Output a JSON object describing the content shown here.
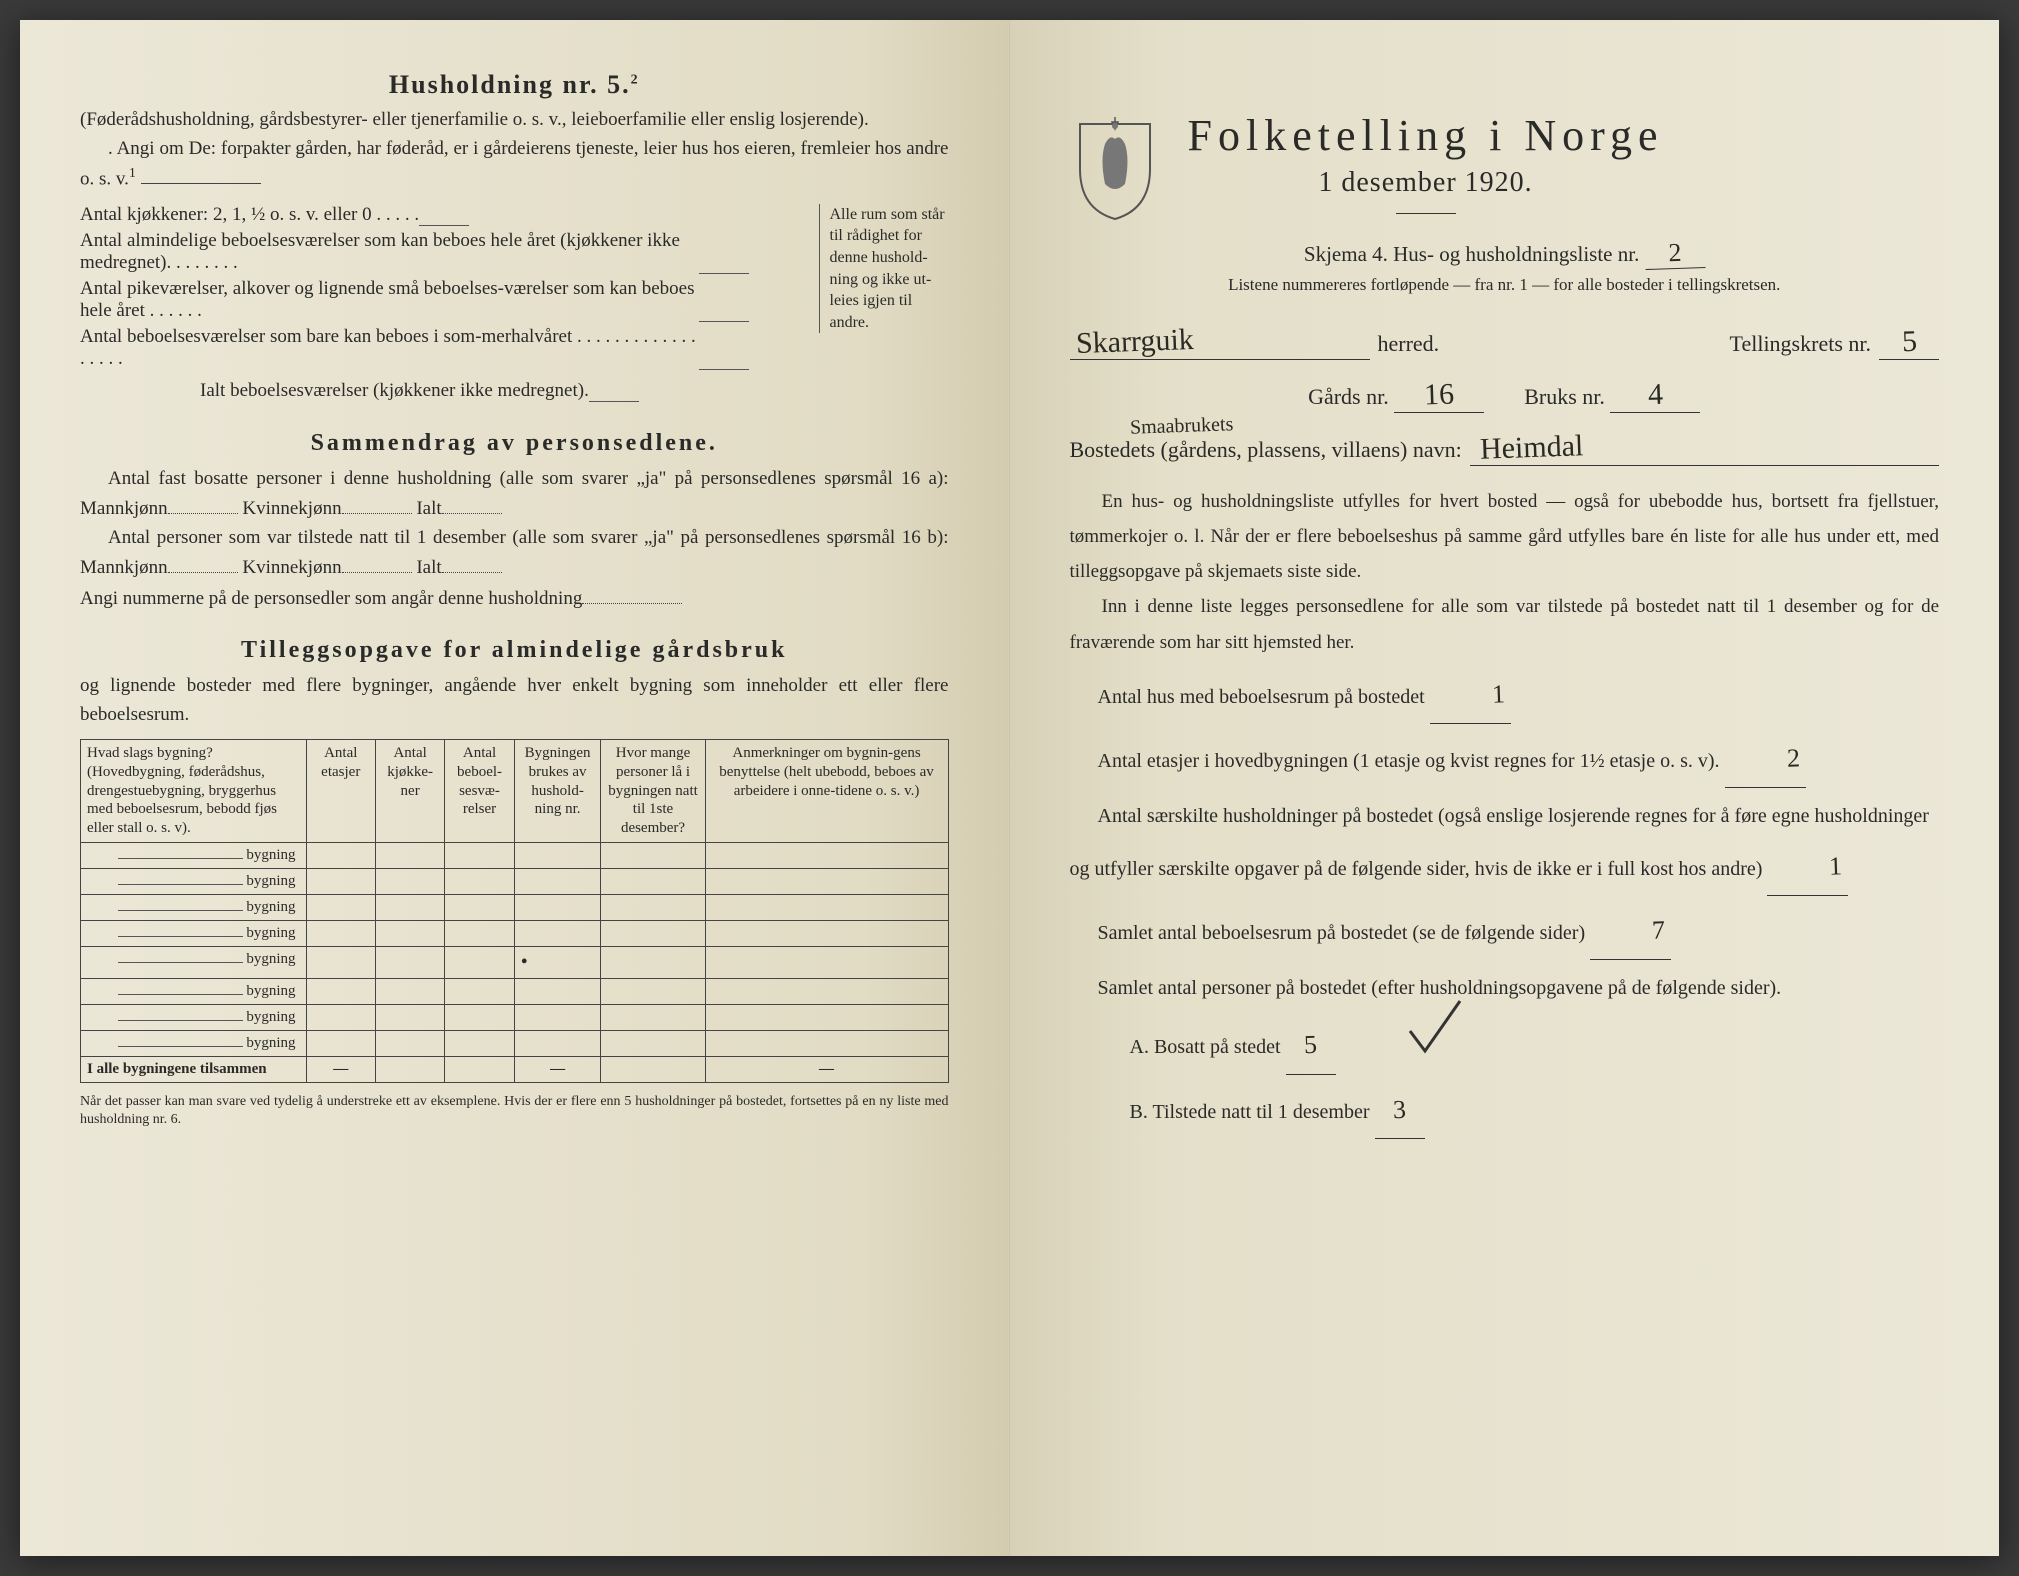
{
  "left": {
    "heading": "Husholdning nr. 5.",
    "heading_sup": "2",
    "intro1": "(Føderådshusholdning, gårdsbestyrer- eller tjenerfamilie o. s. v., leieboerfamilie eller enslig losjerende).",
    "intro2": ". Angi om De: forpakter gården, har føderåd, er i gårdeierens tjeneste, leier hus hos eieren, fremleier hos andre o. s. v.",
    "sup1": "1",
    "rooms": [
      "Antal kjøkkener: 2, 1, ½ o. s. v. eller 0 . . . . .",
      "Antal almindelige beboelsesværelser som kan beboes hele året (kjøkkener ikke medregnet). . . . . . . .",
      "Antal pikeværelser, alkover og lignende små beboelses-værelser som kan beboes hele året . . . . . .",
      "Antal beboelsesværelser som bare kan beboes i som-merhalvåret . . . . . . . . . . . . . . . . . ."
    ],
    "rooms_total": "Ialt beboelsesværelser (kjøkkener ikke medregnet).",
    "side_note": "Alle rum som står til rådighet for denne hushold-ning og ikke ut-leies igjen til andre.",
    "sammendrag_title": "Sammendrag av personsedlene.",
    "s_line1a": "Antal fast bosatte personer i denne husholdning (alle som svarer „ja\" på personsedlenes spørsmål 16 a): Mannkjønn",
    "s_line1b": "Kvinnekjønn",
    "s_line1c": "Ialt",
    "s_line2a": "Antal personer som var tilstede natt til 1 desember (alle som svarer „ja\" på personsedlenes spørsmål 16 b): Mannkjønn",
    "s_line2b": "Kvinnekjønn",
    "s_line2c": "Ialt",
    "s_line3": "Angi nummerne på de personsedler som angår denne husholdning",
    "tillegg_title": "Tilleggsopgave for almindelige gårdsbruk",
    "tillegg_sub": "og lignende bosteder med flere bygninger, angående hver enkelt bygning som inneholder ett eller flere beboelsesrum.",
    "table": {
      "headers": [
        "Hvad slags bygning?\n(Hovedbygning, føderådshus, drengestuebygning, bryggerhus med beboelsesrum, bebodd fjøs eller stall o. s. v).",
        "Antal etasjer",
        "Antal kjøkke-ner",
        "Antal beboel-sesvæ-relser",
        "Bygningen brukes av hushold-ning nr.",
        "Hvor mange personer lå i bygningen natt til 1ste desember?",
        "Anmerkninger om bygnin-gens benyttelse (helt ubebodd, beboes av arbeidere i onne-tidene o. s. v.)"
      ],
      "row_label": "bygning",
      "row_count": 8,
      "sum_label": "I alle bygningene tilsammen",
      "dash": "—"
    },
    "footnote": "Når det passer kan man svare ved tydelig å understreke ett av eksemplene.\nHvis der er flere enn 5 husholdninger på bostedet, fortsettes på en ny liste med husholdning nr. 6."
  },
  "right": {
    "title": "Folketelling i Norge",
    "date": "1 desember 1920.",
    "skjema": "Skjema 4.  Hus- og husholdningsliste nr.",
    "skjema_val": "2",
    "listene": "Listene nummereres fortløpende — fra nr. 1 — for alle bosteder i tellingskretsen.",
    "herred_val": "Skarrguik",
    "herred_lbl": "herred.",
    "krets_lbl": "Tellingskrets nr.",
    "krets_val": "5",
    "gard_lbl": "Gårds nr.",
    "gard_val": "16",
    "bruks_lbl": "Bruks nr.",
    "bruks_val": "4",
    "bosted_lbl": "Bostedets (gårdens, plassens, villaens) navn:",
    "bosted_annot": "Smaabrukets",
    "bosted_val": "Heimdal",
    "para1": "En hus- og husholdningsliste utfylles for hvert bosted — også for ubebodde hus, bortsett fra fjellstuer, tømmerkojer o. l.  Når der er flere beboelseshus på samme gård utfylles bare én liste for alle hus under ett, med tilleggsopgave på skjemaets siste side.",
    "para2": "Inn i denne liste legges personsedlene for alle som var tilstede på bostedet natt til 1 desember og for de fraværende som har sitt hjemsted her.",
    "q1": "Antal hus med beboelsesrum på bostedet",
    "q1_val": "1",
    "q2a": "Antal etasjer i hovedbygningen (1 etasje og kvist regnes for 1½ etasje o. s. v).",
    "q2_val": "2",
    "q3": "Antal særskilte husholdninger på bostedet (også enslige losjerende regnes for å føre egne husholdninger og utfyller særskilte opgaver på de følgende sider, hvis de ikke er i full kost hos andre)",
    "q3_val": "1",
    "q4": "Samlet antal beboelsesrum på bostedet (se de følgende sider)",
    "q4_val": "7",
    "q5": "Samlet antal personer på bostedet (efter husholdningsopgavene på de følgende sider).",
    "q5a": "A.  Bosatt på stedet",
    "q5a_val": "5",
    "q5b": "B.  Tilstede natt til 1 desember",
    "q5b_val": "3"
  }
}
